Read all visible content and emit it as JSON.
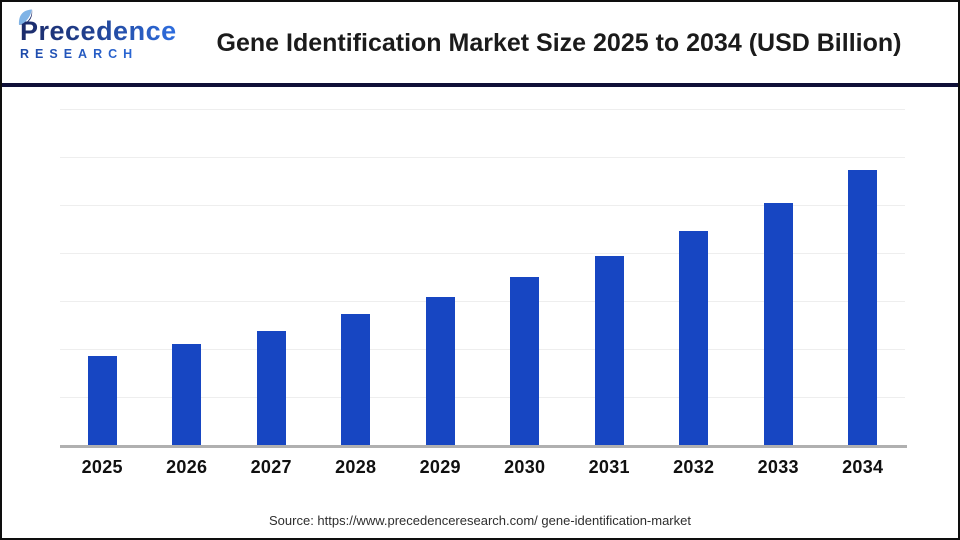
{
  "header": {
    "logo": {
      "name": "Precedence",
      "subname": "RESEARCH"
    },
    "title": "Gene Identification Market Size 2025 to 2034 (USD Billion)"
  },
  "footer": {
    "source": "Source: https://www.precedenceresearch.com/ gene-identification-market"
  },
  "colors": {
    "bar": "#1746c2",
    "separator": "#0f1038",
    "gridline": "#eeeeee",
    "axis": "#b0b0b0",
    "logo_dark": "#1c2b69",
    "logo_blue": "#2e6ee0",
    "leaf_light": "#7fb3e6",
    "title_text": "#1b1b1b"
  },
  "chart_data": {
    "type": "bar",
    "title": "Gene Identification Market Size 2025 to 2034 (USD Billion)",
    "categories": [
      "2025",
      "2026",
      "2027",
      "2028",
      "2029",
      "2030",
      "2031",
      "2032",
      "2033",
      "2034"
    ],
    "values": [
      1.85,
      2.1,
      2.38,
      2.72,
      3.08,
      3.5,
      3.94,
      4.46,
      5.04,
      5.73
    ],
    "xlabel": "",
    "ylabel": "",
    "ylim": [
      0,
      7
    ],
    "gridline_interval": 1,
    "grid": "horizontal",
    "legend": "none",
    "y_axis_labels": "none",
    "data_labels": "none",
    "bar_color": "#1746c2"
  }
}
